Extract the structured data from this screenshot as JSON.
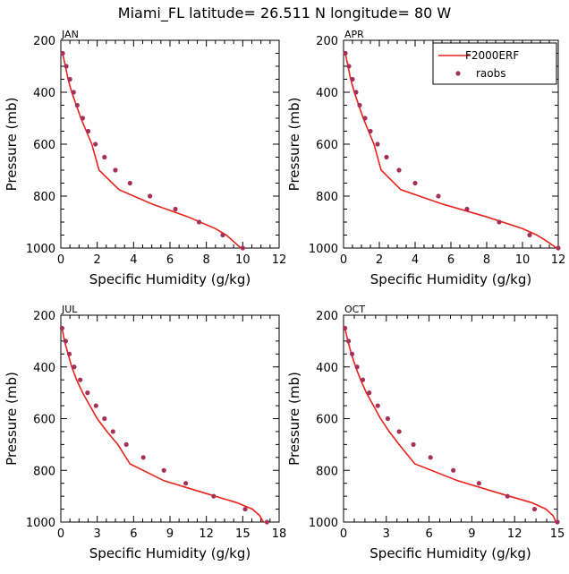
{
  "title": "Miami_FL  latitude= 26.511 N longitude= 80 W",
  "colors": {
    "model": "#e8221c",
    "obs": "#a5305a",
    "axis": "#000000"
  },
  "legend": {
    "model_label": "F2000ERF",
    "obs_label": "raobs"
  },
  "chart_data": [
    {
      "type": "line",
      "panel": "JAN",
      "xlabel": "Specific Humidity (g/kg)",
      "ylabel": "Pressure (mb)",
      "xlim": [
        0,
        12
      ],
      "ylim": [
        1000,
        200
      ],
      "xticks": [
        0,
        2,
        4,
        6,
        8,
        10,
        12
      ],
      "yticks": [
        200,
        400,
        600,
        800,
        1000
      ],
      "series": [
        {
          "name": "F2000ERF",
          "kind": "line",
          "x": [
            0.1,
            0.25,
            0.4,
            0.6,
            0.85,
            1.1,
            1.4,
            1.7,
            2.1,
            3.2,
            5.0,
            7.0,
            8.5,
            9.1,
            9.5,
            9.9
          ],
          "y": [
            250,
            300,
            350,
            400,
            450,
            500,
            550,
            600,
            700,
            775,
            830,
            880,
            925,
            950,
            975,
            1000
          ]
        },
        {
          "name": "raobs",
          "kind": "scatter",
          "x": [
            0.1,
            0.3,
            0.5,
            0.7,
            0.9,
            1.2,
            1.5,
            1.9,
            2.4,
            3.0,
            3.8,
            4.9,
            6.3,
            7.6,
            8.9,
            10.0
          ],
          "y": [
            250,
            300,
            350,
            400,
            450,
            500,
            550,
            600,
            650,
            700,
            750,
            800,
            850,
            900,
            950,
            1000
          ]
        }
      ]
    },
    {
      "type": "line",
      "panel": "APR",
      "xlabel": "Specific Humidity (g/kg)",
      "ylabel": "Pressure (mb)",
      "xlim": [
        0,
        12
      ],
      "ylim": [
        1000,
        200
      ],
      "xticks": [
        0,
        2,
        4,
        6,
        8,
        10,
        12
      ],
      "yticks": [
        200,
        400,
        600,
        800,
        1000
      ],
      "series": [
        {
          "name": "F2000ERF",
          "kind": "line",
          "x": [
            0.1,
            0.25,
            0.4,
            0.6,
            0.85,
            1.1,
            1.4,
            1.7,
            2.1,
            3.2,
            5.5,
            8.0,
            10.0,
            10.8,
            11.4,
            11.9
          ],
          "y": [
            250,
            300,
            350,
            400,
            450,
            500,
            550,
            600,
            700,
            775,
            830,
            880,
            925,
            950,
            975,
            1000
          ]
        },
        {
          "name": "raobs",
          "kind": "scatter",
          "x": [
            0.1,
            0.3,
            0.5,
            0.7,
            0.9,
            1.2,
            1.5,
            1.9,
            2.4,
            3.1,
            4.0,
            5.3,
            6.9,
            8.7,
            10.4,
            12.0
          ],
          "y": [
            250,
            300,
            350,
            400,
            450,
            500,
            550,
            600,
            650,
            700,
            750,
            800,
            850,
            900,
            950,
            1000
          ]
        }
      ]
    },
    {
      "type": "line",
      "panel": "JUL",
      "xlabel": "Specific Humidity (g/kg)",
      "ylabel": "Pressure (mb)",
      "xlim": [
        0,
        18
      ],
      "ylim": [
        1000,
        200
      ],
      "xticks": [
        0,
        3,
        6,
        9,
        12,
        15,
        18
      ],
      "yticks": [
        200,
        400,
        600,
        800,
        1000
      ],
      "series": [
        {
          "name": "F2000ERF",
          "kind": "line",
          "x": [
            0.1,
            0.3,
            0.6,
            0.9,
            1.3,
            1.8,
            2.4,
            3.0,
            3.8,
            4.7,
            5.7,
            8.5,
            12.0,
            14.5,
            15.8,
            16.4,
            16.7
          ],
          "y": [
            250,
            300,
            350,
            400,
            450,
            500,
            550,
            600,
            650,
            700,
            775,
            840,
            890,
            925,
            950,
            975,
            1000
          ]
        },
        {
          "name": "raobs",
          "kind": "scatter",
          "x": [
            0.1,
            0.4,
            0.7,
            1.1,
            1.6,
            2.2,
            2.9,
            3.6,
            4.3,
            5.4,
            6.8,
            8.5,
            10.3,
            12.6,
            15.2,
            17.0
          ],
          "y": [
            250,
            300,
            350,
            400,
            450,
            500,
            550,
            600,
            650,
            700,
            750,
            800,
            850,
            900,
            950,
            1000
          ]
        }
      ]
    },
    {
      "type": "line",
      "panel": "OCT",
      "xlabel": "Specific Humidity (g/kg)",
      "ylabel": "Pressure (mb)",
      "xlim": [
        0,
        15
      ],
      "ylim": [
        1000,
        200
      ],
      "xticks": [
        0,
        3,
        6,
        9,
        12,
        15
      ],
      "yticks": [
        200,
        400,
        600,
        800,
        1000
      ],
      "series": [
        {
          "name": "F2000ERF",
          "kind": "line",
          "x": [
            0.1,
            0.3,
            0.55,
            0.85,
            1.2,
            1.6,
            2.1,
            2.6,
            3.2,
            3.9,
            5.0,
            8.0,
            11.0,
            13.2,
            14.2,
            14.7,
            14.9
          ],
          "y": [
            250,
            300,
            350,
            400,
            450,
            500,
            550,
            600,
            650,
            700,
            775,
            840,
            890,
            925,
            950,
            975,
            1000
          ]
        },
        {
          "name": "raobs",
          "kind": "scatter",
          "x": [
            0.1,
            0.35,
            0.6,
            0.95,
            1.35,
            1.8,
            2.4,
            3.1,
            3.9,
            4.9,
            6.1,
            7.7,
            9.5,
            11.5,
            13.4,
            15.0
          ],
          "y": [
            250,
            300,
            350,
            400,
            450,
            500,
            550,
            600,
            650,
            700,
            750,
            800,
            850,
            900,
            950,
            1000
          ]
        }
      ]
    }
  ]
}
